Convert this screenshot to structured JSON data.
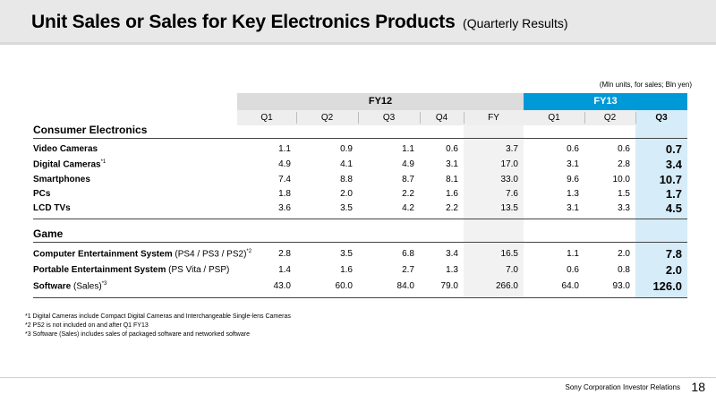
{
  "header": {
    "title": "Unit Sales or Sales for Key Electronics Products",
    "subtitle": "(Quarterly Results)"
  },
  "units_note": "(Mln units, for sales; Bln yen)",
  "table": {
    "groups": [
      {
        "label": "FY12"
      },
      {
        "label": "FY13"
      }
    ],
    "columns": [
      "Q1",
      "Q2",
      "Q3",
      "Q4",
      "FY",
      "Q1",
      "Q2",
      "Q3"
    ],
    "sections": [
      {
        "title": "Consumer Electronics",
        "rows": [
          {
            "label": "Video Cameras",
            "detail": "",
            "mark": "",
            "values": [
              "1.1",
              "0.9",
              "1.1",
              "0.6",
              "3.7",
              "0.6",
              "0.6",
              "0.7"
            ]
          },
          {
            "label": "Digital Cameras",
            "detail": "",
            "mark": "*1",
            "values": [
              "4.9",
              "4.1",
              "4.9",
              "3.1",
              "17.0",
              "3.1",
              "2.8",
              "3.4"
            ]
          },
          {
            "label": "Smartphones",
            "detail": "",
            "mark": "",
            "values": [
              "7.4",
              "8.8",
              "8.7",
              "8.1",
              "33.0",
              "9.6",
              "10.0",
              "10.7"
            ]
          },
          {
            "label": "PCs",
            "detail": "",
            "mark": "",
            "values": [
              "1.8",
              "2.0",
              "2.2",
              "1.6",
              "7.6",
              "1.3",
              "1.5",
              "1.7"
            ]
          },
          {
            "label": "LCD TVs",
            "detail": "",
            "mark": "",
            "values": [
              "3.6",
              "3.5",
              "4.2",
              "2.2",
              "13.5",
              "3.1",
              "3.3",
              "4.5"
            ]
          }
        ]
      },
      {
        "title": "Game",
        "rows": [
          {
            "label": "Computer Entertainment System",
            "detail": "(PS4 / PS3 / PS2)",
            "mark": "*2",
            "values": [
              "2.8",
              "3.5",
              "6.8",
              "3.4",
              "16.5",
              "1.1",
              "2.0",
              "7.8"
            ]
          },
          {
            "label": "Portable Entertainment System",
            "detail": "(PS Vita / PSP)",
            "mark": "",
            "values": [
              "1.4",
              "1.6",
              "2.7",
              "1.3",
              "7.0",
              "0.6",
              "0.8",
              "2.0"
            ]
          },
          {
            "label": "Software",
            "detail": "(Sales)",
            "mark": "*3",
            "values": [
              "43.0",
              "60.0",
              "84.0",
              "79.0",
              "266.0",
              "64.0",
              "93.0",
              "126.0"
            ]
          }
        ]
      }
    ]
  },
  "footnotes": [
    "*1 Digital Cameras include Compact Digital Cameras and Interchangeable Single-lens Cameras",
    "*2 PS2 is not included on and after Q1 FY13",
    "*3 Software (Sales) includes sales of packaged software and networked software"
  ],
  "footer": {
    "company": "Sony Corporation   Investor Relations",
    "page_number": "18"
  },
  "colors": {
    "fy13_band": "#0099d8",
    "highlight_col": "#d6ecf8",
    "fy12_band": "#dcdcdc",
    "header_row": "#eeeeee",
    "fy_col": "#f2f2f2"
  }
}
